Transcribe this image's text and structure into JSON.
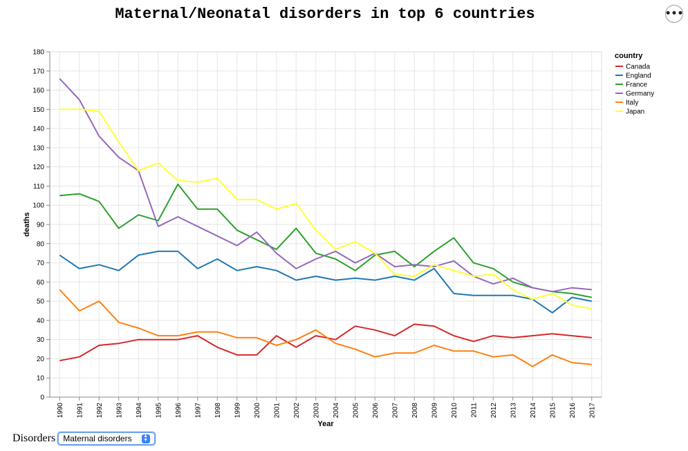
{
  "title": "Maternal/Neonatal disorders in top 6 countries",
  "menu_icon": "more-horizontal-icon",
  "menu_glyph": "•••",
  "controls": {
    "label": "Disorders",
    "selected": "Maternal disorders"
  },
  "chart_data": {
    "type": "line",
    "xlabel": "Year",
    "ylabel": "deaths",
    "ylim": [
      0,
      180
    ],
    "yticks": [
      0,
      10,
      20,
      30,
      40,
      50,
      60,
      70,
      80,
      90,
      100,
      110,
      120,
      130,
      140,
      150,
      160,
      170,
      180
    ],
    "x": [
      "1990",
      "1991",
      "1992",
      "1993",
      "1994",
      "1995",
      "1996",
      "1997",
      "1998",
      "1999",
      "2000",
      "2001",
      "2002",
      "2003",
      "2004",
      "2005",
      "2006",
      "2007",
      "2008",
      "2009",
      "2010",
      "2011",
      "2012",
      "2013",
      "2014",
      "2015",
      "2016",
      "2017"
    ],
    "legend_title": "country",
    "legend_position": "top-right",
    "grid": true,
    "series": [
      {
        "name": "Canada",
        "color": "#d62728",
        "values": [
          19,
          21,
          27,
          28,
          30,
          30,
          30,
          32,
          26,
          22,
          22,
          32,
          26,
          32,
          30,
          37,
          35,
          32,
          38,
          37,
          32,
          29,
          32,
          31,
          32,
          33,
          32,
          31
        ]
      },
      {
        "name": "England",
        "color": "#1f77b4",
        "values": [
          74,
          67,
          69,
          66,
          74,
          76,
          76,
          67,
          72,
          66,
          68,
          66,
          61,
          63,
          61,
          62,
          61,
          63,
          61,
          67,
          54,
          53,
          53,
          53,
          51,
          44,
          52,
          50
        ]
      },
      {
        "name": "France",
        "color": "#2ca02c",
        "values": [
          105,
          106,
          102,
          88,
          95,
          92,
          111,
          98,
          98,
          87,
          82,
          77,
          88,
          75,
          72,
          66,
          74,
          76,
          68,
          76,
          83,
          70,
          67,
          60,
          57,
          55,
          54,
          52
        ]
      },
      {
        "name": "Germany",
        "color": "#9467bd",
        "values": [
          166,
          155,
          136,
          125,
          118,
          89,
          94,
          89,
          84,
          79,
          86,
          75,
          67,
          72,
          76,
          70,
          75,
          68,
          69,
          68,
          71,
          63,
          59,
          62,
          57,
          55,
          57,
          56
        ]
      },
      {
        "name": "Italy",
        "color": "#ff7f0e",
        "values": [
          56,
          45,
          50,
          39,
          36,
          32,
          32,
          34,
          34,
          31,
          31,
          27,
          30,
          35,
          28,
          25,
          21,
          23,
          23,
          27,
          24,
          24,
          21,
          22,
          16,
          22,
          18,
          17
        ]
      },
      {
        "name": "Japan",
        "color": "#ffff33",
        "values": [
          150,
          150,
          149,
          133,
          118,
          122,
          113,
          112,
          114,
          103,
          103,
          98,
          101,
          87,
          77,
          81,
          75,
          64,
          63,
          69,
          66,
          63,
          64,
          56,
          51,
          54,
          48,
          46
        ]
      }
    ]
  }
}
